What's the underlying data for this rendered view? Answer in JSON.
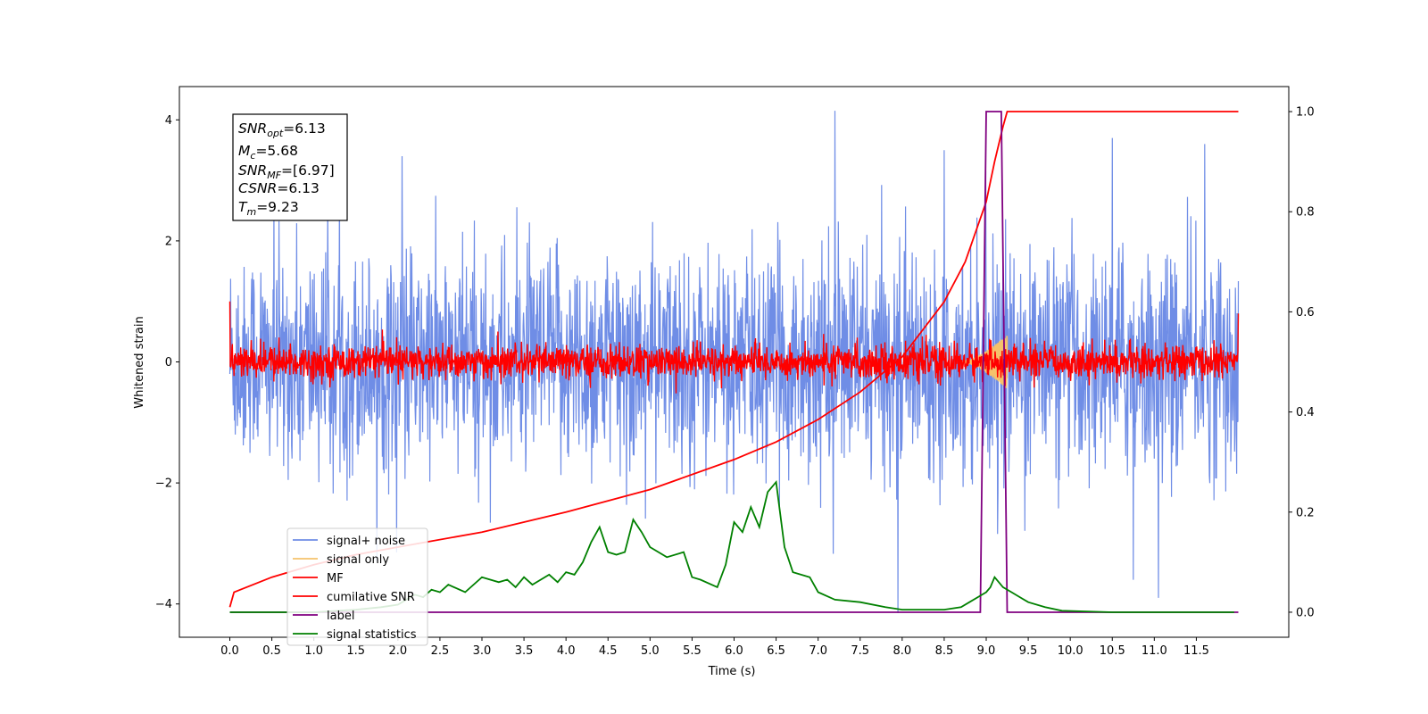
{
  "chart_data": {
    "type": "line",
    "xlabel": "Time (s)",
    "ylabel": "Whitened strain",
    "xlim": [
      -0.6,
      12.6
    ],
    "ylim": [
      -4.55,
      4.55
    ],
    "y2lim": [
      -0.05,
      1.05
    ],
    "x_ticks": [
      "0.0",
      "0.5",
      "1.0",
      "1.5",
      "2.0",
      "2.5",
      "3.0",
      "3.5",
      "4.0",
      "4.5",
      "5.0",
      "5.5",
      "6.0",
      "6.5",
      "7.0",
      "7.5",
      "8.0",
      "8.5",
      "9.0",
      "9.5",
      "10.0",
      "10.5",
      "11.0",
      "11.5"
    ],
    "y_ticks": [
      "-4",
      "-2",
      "0",
      "2",
      "4"
    ],
    "y2_ticks": [
      "0.0",
      "0.2",
      "0.4",
      "0.6",
      "0.8",
      "1.0"
    ],
    "legend": {
      "placement": "lower-left",
      "entries": [
        "signal+ noise",
        "signal only",
        "MF",
        "cumilative SNR",
        "label",
        "signal statistics"
      ]
    },
    "annotation": {
      "snr_opt": {
        "sym": "SNR",
        "sub": "opt",
        "val": "=6.13"
      },
      "mc": {
        "sym": "M",
        "sub": "c",
        "val": "=5.68"
      },
      "snr_mf": {
        "sym": "SNR",
        "sub": "MF",
        "val": "=[6.97]"
      },
      "csnr": {
        "sym": "CSNR",
        "sub": "",
        "val": "=6.13"
      },
      "tm": {
        "sym": "T",
        "sub": "m",
        "val": "=9.23"
      }
    },
    "series": [
      {
        "name": "signal+ noise",
        "axis": "left",
        "color": "#6f8de6",
        "noise_std": 1.15,
        "extremes": [
          [
            7.2,
            4.15
          ],
          [
            7.95,
            -4.15
          ],
          [
            2.05,
            3.4
          ],
          [
            8.5,
            3.5
          ],
          [
            10.5,
            3.7
          ],
          [
            11.6,
            3.6
          ],
          [
            11.05,
            -3.9
          ],
          [
            10.75,
            -3.6
          ]
        ]
      },
      {
        "name": "signal only",
        "axis": "left",
        "color": "#f5c26b",
        "chirp_start": 8.7,
        "chirp_end": 9.25,
        "peak_amplitude": 0.45
      },
      {
        "name": "MF",
        "axis": "left",
        "color": "#ff0000",
        "noise_std": 0.14,
        "start_value": 1.0,
        "end_value": 0.8
      },
      {
        "name": "cumilative SNR",
        "axis": "right",
        "color": "#ff0000",
        "x": [
          0.0,
          0.05,
          0.5,
          1.0,
          1.5,
          2.0,
          3.0,
          4.0,
          5.0,
          6.0,
          6.5,
          7.0,
          7.5,
          8.0,
          8.5,
          8.75,
          9.0,
          9.1,
          9.2,
          9.25,
          9.3,
          12.0
        ],
        "y": [
          0.01,
          0.04,
          0.07,
          0.095,
          0.115,
          0.13,
          0.16,
          0.2,
          0.245,
          0.305,
          0.34,
          0.385,
          0.44,
          0.51,
          0.62,
          0.7,
          0.82,
          0.9,
          0.97,
          1.0,
          1.0,
          1.0
        ]
      },
      {
        "name": "label",
        "axis": "right",
        "color": "#800080",
        "x": [
          0.0,
          8.93,
          9.0,
          9.18,
          9.25,
          12.0
        ],
        "y": [
          0.0,
          0.0,
          1.0,
          1.0,
          0.0,
          0.0
        ]
      },
      {
        "name": "signal statistics",
        "axis": "right",
        "color": "#008000",
        "x": [
          0.0,
          1.0,
          1.5,
          1.8,
          2.0,
          2.1,
          2.2,
          2.3,
          2.4,
          2.5,
          2.6,
          2.8,
          3.0,
          3.2,
          3.3,
          3.4,
          3.5,
          3.6,
          3.8,
          3.9,
          4.0,
          4.1,
          4.2,
          4.3,
          4.4,
          4.5,
          4.6,
          4.7,
          4.8,
          4.9,
          5.0,
          5.2,
          5.4,
          5.5,
          5.6,
          5.8,
          5.9,
          6.0,
          6.1,
          6.2,
          6.3,
          6.4,
          6.5,
          6.6,
          6.7,
          6.9,
          7.0,
          7.2,
          7.5,
          7.8,
          8.0,
          8.3,
          8.5,
          8.7,
          8.8,
          8.9,
          9.0,
          9.05,
          9.1,
          9.2,
          9.3,
          9.4,
          9.5,
          9.7,
          9.9,
          10.5,
          11.0,
          11.5,
          11.95
        ],
        "y": [
          0.0,
          0.0,
          0.005,
          0.01,
          0.015,
          0.025,
          0.035,
          0.03,
          0.045,
          0.04,
          0.055,
          0.04,
          0.07,
          0.06,
          0.065,
          0.05,
          0.07,
          0.055,
          0.075,
          0.06,
          0.08,
          0.075,
          0.1,
          0.14,
          0.17,
          0.12,
          0.115,
          0.12,
          0.185,
          0.16,
          0.13,
          0.11,
          0.12,
          0.07,
          0.065,
          0.05,
          0.095,
          0.18,
          0.16,
          0.21,
          0.17,
          0.24,
          0.26,
          0.13,
          0.08,
          0.07,
          0.04,
          0.025,
          0.02,
          0.01,
          0.005,
          0.005,
          0.005,
          0.01,
          0.02,
          0.03,
          0.04,
          0.05,
          0.07,
          0.05,
          0.04,
          0.03,
          0.02,
          0.01,
          0.003,
          0.0,
          0.0,
          0.0,
          0.0
        ]
      }
    ]
  }
}
